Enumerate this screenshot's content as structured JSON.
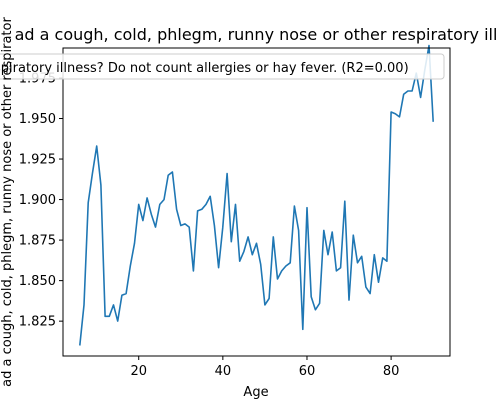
{
  "chart_data": {
    "type": "line",
    "title": "ad a cough, cold, phlegm, runny nose or other respiratory ill",
    "legend_text": "spiratory illness? Do not count allergies or hay fever. (R2=0.00)",
    "legend_position": "top",
    "xlabel": "Age",
    "ylabel": "ad a cough, cold, phlegm, runny nose or other respirator",
    "xlim": [
      2,
      94
    ],
    "ylim": [
      1.8035,
      1.9935
    ],
    "xticks": [
      20,
      40,
      60,
      80
    ],
    "xtick_labels": [
      "20",
      "40",
      "60",
      "80"
    ],
    "yticks": [
      1.825,
      1.85,
      1.875,
      1.9,
      1.925,
      1.95,
      1.975
    ],
    "ytick_labels": [
      "1.825",
      "1.850",
      "1.875",
      "1.900",
      "1.925",
      "1.950",
      "1.975"
    ],
    "grid": false,
    "line_color": "#1f77b4",
    "series": [
      {
        "x": [
          6,
          7,
          8,
          9,
          10,
          11,
          12,
          13,
          14,
          15,
          16,
          17,
          18,
          19,
          20,
          21,
          22,
          23,
          24,
          25,
          26,
          27,
          28,
          29,
          30,
          31,
          32,
          33,
          34,
          35,
          36,
          37,
          38,
          39,
          40,
          41,
          42,
          43,
          44,
          45,
          46,
          47,
          48,
          49,
          50,
          51,
          52,
          53,
          54,
          55,
          56,
          57,
          58,
          59,
          60,
          61,
          62,
          63,
          64,
          65,
          66,
          67,
          68,
          69,
          70,
          71,
          72,
          73,
          74,
          75,
          76,
          77,
          78,
          79,
          80,
          81,
          82,
          83,
          84,
          85,
          86,
          87,
          88,
          89,
          90
        ],
        "values": [
          1.81,
          1.835,
          1.898,
          1.916,
          1.933,
          1.909,
          1.828,
          1.828,
          1.835,
          1.825,
          1.841,
          1.842,
          1.859,
          1.873,
          1.897,
          1.887,
          1.901,
          1.891,
          1.883,
          1.897,
          1.9,
          1.915,
          1.917,
          1.894,
          1.884,
          1.885,
          1.883,
          1.856,
          1.893,
          1.894,
          1.897,
          1.902,
          1.884,
          1.858,
          1.883,
          1.916,
          1.874,
          1.897,
          1.862,
          1.868,
          1.877,
          1.866,
          1.873,
          1.86,
          1.835,
          1.839,
          1.877,
          1.851,
          1.856,
          1.859,
          1.861,
          1.896,
          1.881,
          1.82,
          1.895,
          1.84,
          1.832,
          1.836,
          1.881,
          1.866,
          1.88,
          1.856,
          1.858,
          1.899,
          1.838,
          1.878,
          1.861,
          1.865,
          1.846,
          1.842,
          1.866,
          1.849,
          1.864,
          1.862,
          1.954,
          1.953,
          1.951,
          1.965,
          1.967,
          1.967,
          1.978,
          1.963,
          1.98,
          1.995,
          1.948
        ]
      }
    ]
  }
}
